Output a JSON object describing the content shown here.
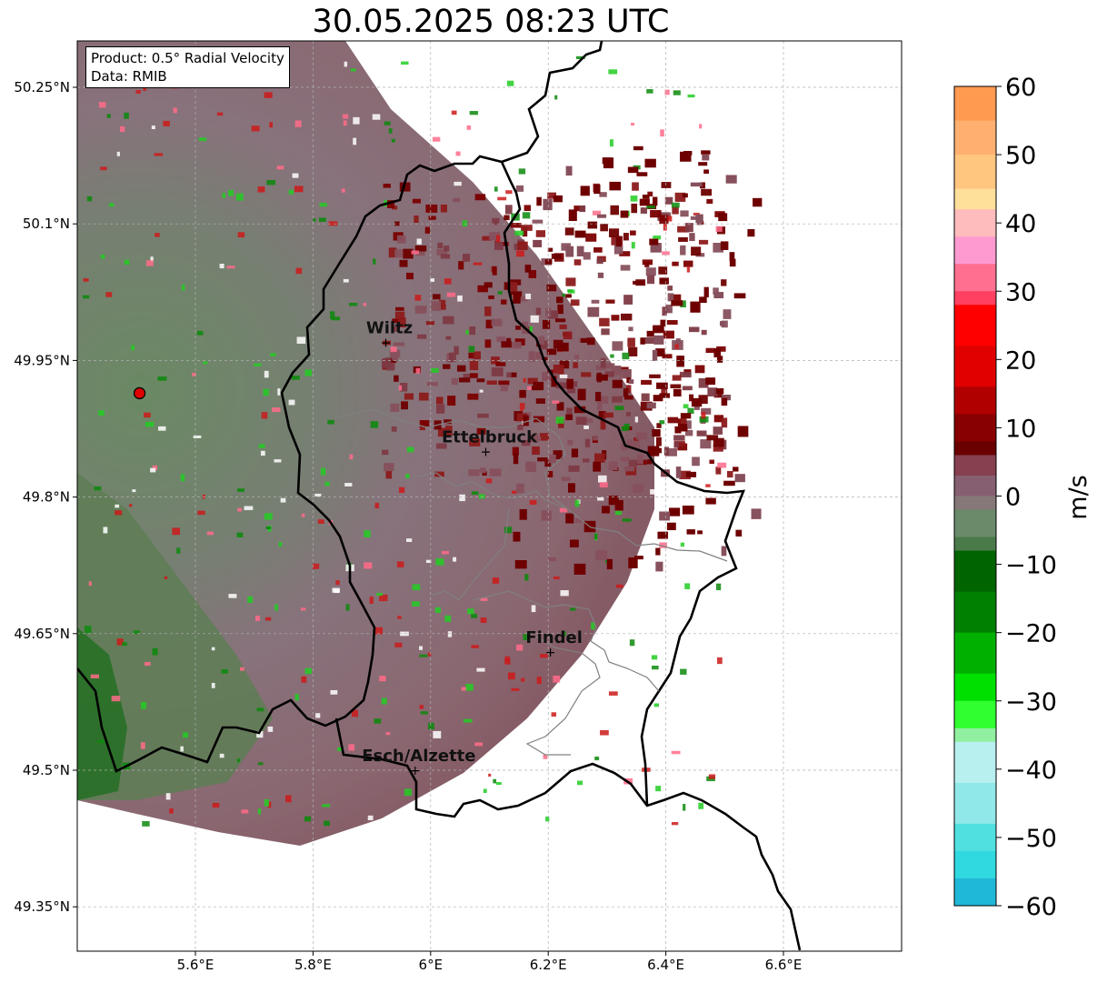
{
  "title": "30.05.2025 08:23 UTC",
  "infobox": {
    "product": "Product: 0.5° Radial Velocity",
    "data": "Data: RMIB"
  },
  "colorbar": {
    "label": "m/s",
    "ticks": [
      "60",
      "50",
      "40",
      "30",
      "20",
      "10",
      "0",
      "−10",
      "−20",
      "−30",
      "−40",
      "−50",
      "−60"
    ],
    "range": [
      -60,
      60
    ]
  },
  "axes": {
    "lon_ticks": [
      "5.6°E",
      "5.8°E",
      "6°E",
      "6.2°E",
      "6.4°E",
      "6.6°E"
    ],
    "lat_ticks": [
      "50.25°N",
      "50.1°N",
      "49.95°N",
      "49.8°N",
      "49.65°N",
      "49.5°N",
      "49.35°N"
    ],
    "lon_values": [
      5.6,
      5.8,
      6.0,
      6.2,
      6.4,
      6.6
    ],
    "lat_values": [
      50.25,
      50.1,
      49.95,
      49.8,
      49.65,
      49.5,
      49.35
    ],
    "lon_range": [
      5.4,
      6.8
    ],
    "lat_range": [
      49.3,
      50.3
    ],
    "grid": true
  },
  "cities": [
    {
      "name": "Wiltz",
      "lon": 5.93,
      "lat": 49.97
    },
    {
      "name": "Ettelbruck",
      "lon": 6.1,
      "lat": 49.85
    },
    {
      "name": "Findel",
      "lon": 6.21,
      "lat": 49.63
    },
    {
      "name": "Esch/Alzette",
      "lon": 5.98,
      "lat": 49.5
    }
  ],
  "radar_site": {
    "lon": 5.505,
    "lat": 49.914
  },
  "colors": {
    "border": "#000000",
    "inner_border": "#808080",
    "grid": "#b0b0b0",
    "radar_site": "#e00000"
  }
}
